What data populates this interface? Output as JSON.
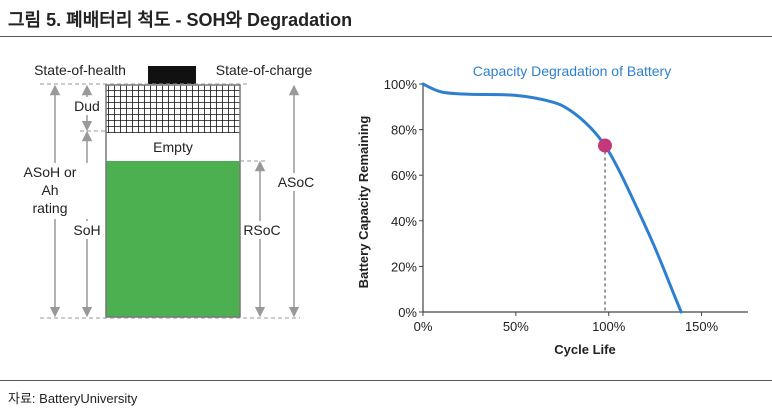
{
  "figure": {
    "title": "그림 5. 폐배터리 척도 - SOH와 Degradation",
    "source": "자료: BatteryUniversity"
  },
  "battery": {
    "label_soh_top": "State-of-health",
    "label_soc_top": "State-of-charge",
    "dud": "Dud",
    "empty": "Empty",
    "asoh_line1": "ASoH or",
    "asoh_line2": "Ah",
    "asoh_line3": "rating",
    "soh": "SoH",
    "rsoc": "RSoC",
    "asoc": "ASoC",
    "fill_color": "#4caf50",
    "terminal_color": "#111111"
  },
  "chart_data": {
    "type": "line",
    "title": "Capacity Degradation of Battery",
    "xlabel": "Cycle Life",
    "ylabel": "Battery Capacity Remaining",
    "x_ticks": [
      "0%",
      "50%",
      "100%",
      "150%"
    ],
    "y_ticks": [
      "0%",
      "20%",
      "40%",
      "60%",
      "80%",
      "100%"
    ],
    "xlim": [
      0,
      175
    ],
    "ylim": [
      0,
      100
    ],
    "series": [
      {
        "name": "Capacity",
        "color": "#2f7fd1",
        "x": [
          0,
          10,
          25,
          50,
          70,
          80,
          90,
          98,
          105,
          115,
          125,
          135,
          139
        ],
        "y": [
          100,
          96.5,
          95.5,
          95,
          92,
          88,
          81,
          73,
          63,
          46,
          28,
          8,
          0
        ]
      }
    ],
    "marker": {
      "x": 98,
      "y": 73,
      "color": "#c2387a"
    },
    "grid": false
  }
}
